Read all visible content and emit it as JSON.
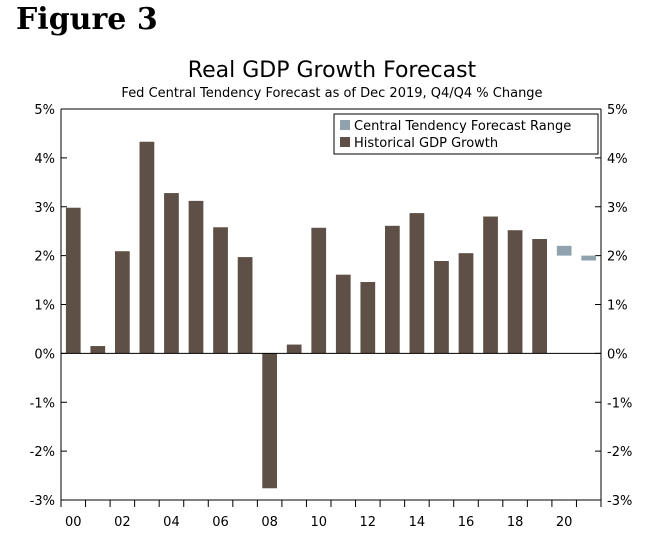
{
  "figure_label": "Figure 3",
  "colors": {
    "historical": "#5e5046",
    "forecast": "#8fa2ae",
    "axis": "#000000"
  },
  "chart_data": {
    "type": "bar",
    "title": "Real GDP Growth Forecast",
    "subtitle": "Fed Central Tendency Forecast as of Dec 2019, Q4/Q4 % Change",
    "ylim": [
      -3,
      5
    ],
    "y_ticks": [
      5,
      4,
      3,
      2,
      1,
      0,
      -1,
      -2,
      -3
    ],
    "y_tick_labels": [
      "5%",
      "4%",
      "3%",
      "2%",
      "1%",
      "0%",
      "-1%",
      "-2%",
      "-3%"
    ],
    "x_start": 2000,
    "x_end": 2021,
    "x_tick_labels": [
      {
        "year": 2000,
        "label": "00"
      },
      {
        "year": 2002,
        "label": "02"
      },
      {
        "year": 2004,
        "label": "04"
      },
      {
        "year": 2006,
        "label": "06"
      },
      {
        "year": 2008,
        "label": "08"
      },
      {
        "year": 2010,
        "label": "10"
      },
      {
        "year": 2012,
        "label": "12"
      },
      {
        "year": 2014,
        "label": "14"
      },
      {
        "year": 2016,
        "label": "16"
      },
      {
        "year": 2018,
        "label": "18"
      },
      {
        "year": 2020,
        "label": "20"
      }
    ],
    "legend": [
      {
        "key": "forecast",
        "label": "Central Tendency Forecast Range"
      },
      {
        "key": "historical",
        "label": "Historical GDP Growth"
      }
    ],
    "series": [
      {
        "name": "Historical GDP Growth",
        "key": "historical",
        "points": [
          {
            "year": 2000,
            "value": 2.98
          },
          {
            "year": 2001,
            "value": 0.15
          },
          {
            "year": 2002,
            "value": 2.09
          },
          {
            "year": 2003,
            "value": 4.33
          },
          {
            "year": 2004,
            "value": 3.28
          },
          {
            "year": 2005,
            "value": 3.12
          },
          {
            "year": 2006,
            "value": 2.58
          },
          {
            "year": 2007,
            "value": 1.97
          },
          {
            "year": 2008,
            "value": -2.76
          },
          {
            "year": 2009,
            "value": 0.18
          },
          {
            "year": 2010,
            "value": 2.57
          },
          {
            "year": 2011,
            "value": 1.61
          },
          {
            "year": 2012,
            "value": 1.46
          },
          {
            "year": 2013,
            "value": 2.61
          },
          {
            "year": 2014,
            "value": 2.87
          },
          {
            "year": 2015,
            "value": 1.89
          },
          {
            "year": 2016,
            "value": 2.05
          },
          {
            "year": 2017,
            "value": 2.8
          },
          {
            "year": 2018,
            "value": 2.52
          },
          {
            "year": 2019,
            "value": 2.34
          }
        ]
      },
      {
        "name": "Central Tendency Forecast Range",
        "key": "forecast",
        "ranges": [
          {
            "year": 2020,
            "low": 2.0,
            "high": 2.2
          },
          {
            "year": 2021,
            "low": 1.9,
            "high": 2.0
          }
        ]
      }
    ]
  }
}
